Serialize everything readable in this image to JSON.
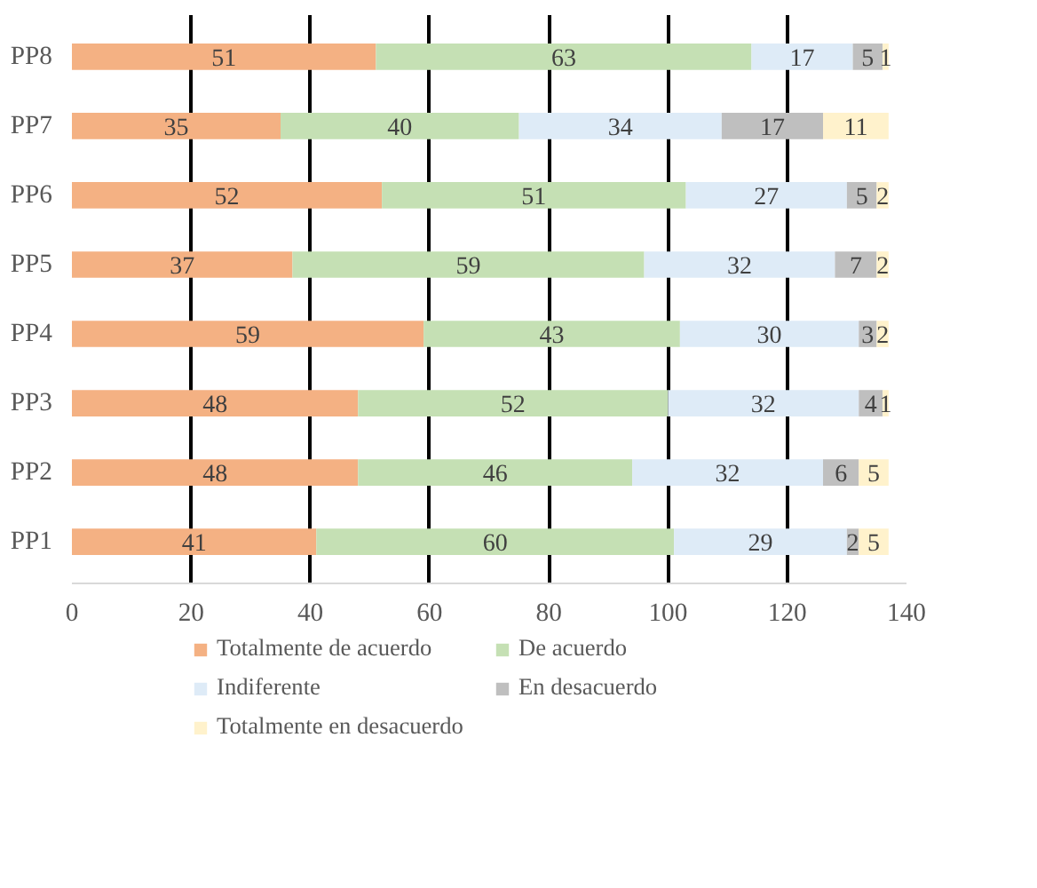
{
  "chart_data": {
    "type": "bar",
    "orientation": "horizontal",
    "stacked": true,
    "data_labels": true,
    "grid": "x",
    "legend": "bottom",
    "categories": [
      "PP8",
      "PP7",
      "PP6",
      "PP5",
      "PP4",
      "PP3",
      "PP2",
      "PP1"
    ],
    "xlim": [
      0,
      140
    ],
    "xticks": [
      0,
      20,
      40,
      60,
      80,
      100,
      120,
      140
    ],
    "series": [
      {
        "name": "Totalmente de acuerdo",
        "color": "#f4b183",
        "values": [
          51,
          35,
          52,
          37,
          59,
          48,
          48,
          41
        ]
      },
      {
        "name": "De acuerdo",
        "color": "#c5e0b4",
        "values": [
          63,
          40,
          51,
          59,
          43,
          52,
          46,
          60
        ]
      },
      {
        "name": "Indiferente",
        "color": "#deebf7",
        "values": [
          17,
          34,
          27,
          32,
          30,
          32,
          32,
          29
        ]
      },
      {
        "name": "En desacuerdo",
        "color": "#bfbfbf",
        "values": [
          5,
          17,
          5,
          7,
          3,
          4,
          6,
          2
        ]
      },
      {
        "name": "Totalmente en desacuerdo",
        "color": "#fff2cc",
        "values": [
          1,
          11,
          2,
          2,
          2,
          1,
          5,
          5
        ]
      }
    ]
  }
}
